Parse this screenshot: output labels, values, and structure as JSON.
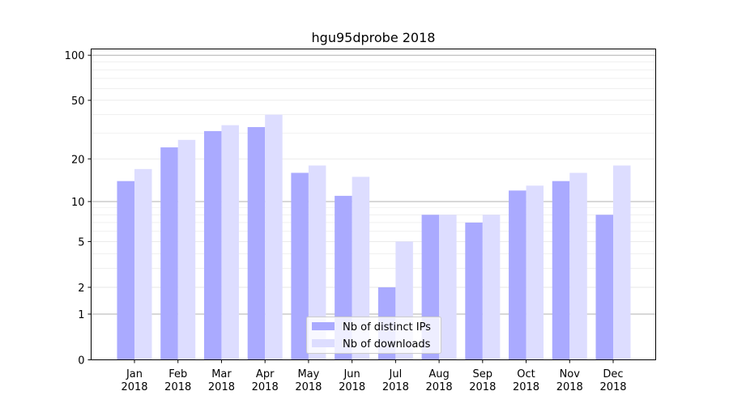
{
  "chart_data": {
    "type": "bar",
    "title": "hgu95dprobe 2018",
    "xlabel": "",
    "ylabel": "",
    "y_scale": "log(1+y)",
    "ylim": [
      0,
      110
    ],
    "y_ticks": [
      0,
      1,
      2,
      5,
      10,
      20,
      50,
      100
    ],
    "grid": true,
    "legend_position": "bottom-center",
    "categories": [
      [
        "Jan",
        "2018"
      ],
      [
        "Feb",
        "2018"
      ],
      [
        "Mar",
        "2018"
      ],
      [
        "Apr",
        "2018"
      ],
      [
        "May",
        "2018"
      ],
      [
        "Jun",
        "2018"
      ],
      [
        "Jul",
        "2018"
      ],
      [
        "Aug",
        "2018"
      ],
      [
        "Sep",
        "2018"
      ],
      [
        "Oct",
        "2018"
      ],
      [
        "Nov",
        "2018"
      ],
      [
        "Dec",
        "2018"
      ]
    ],
    "series": [
      {
        "name": "Nb of distinct IPs",
        "color": "#aaaaff",
        "values": [
          14,
          24,
          31,
          33,
          16,
          11,
          2,
          8,
          7,
          12,
          14,
          8
        ]
      },
      {
        "name": "Nb of downloads",
        "color": "#ddddff",
        "values": [
          17,
          27,
          34,
          40,
          18,
          15,
          5,
          8,
          8,
          13,
          16,
          18
        ]
      }
    ]
  }
}
